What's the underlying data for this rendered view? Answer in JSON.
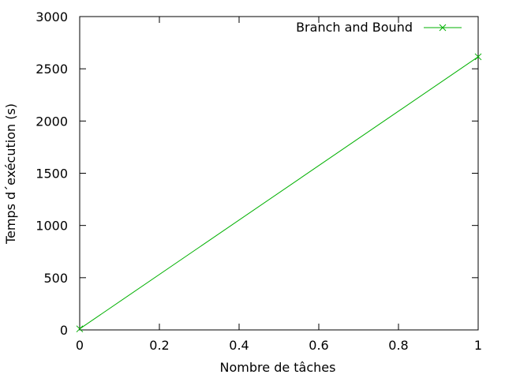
{
  "chart_data": {
    "type": "line",
    "title": "",
    "xlabel": "Nombre de tâches",
    "ylabel": "Temps d´exécution (s)",
    "xlim": [
      0,
      1
    ],
    "ylim": [
      0,
      3000
    ],
    "xticks": [
      0,
      0.2,
      0.4,
      0.6,
      0.8,
      1
    ],
    "xtick_labels": [
      "0",
      "0.2",
      "0.4",
      "0.6",
      "0.8",
      "1"
    ],
    "yticks": [
      0,
      500,
      1000,
      1500,
      2000,
      2500,
      3000
    ],
    "ytick_labels": [
      "0",
      "500",
      "1000",
      "1500",
      "2000",
      "2500",
      "3000"
    ],
    "grid": false,
    "legend_position": "top-right",
    "series": [
      {
        "name": "Branch and Bound",
        "color": "#00b000",
        "marker": "x",
        "x": [
          0,
          1
        ],
        "y": [
          10,
          2615
        ]
      }
    ]
  }
}
